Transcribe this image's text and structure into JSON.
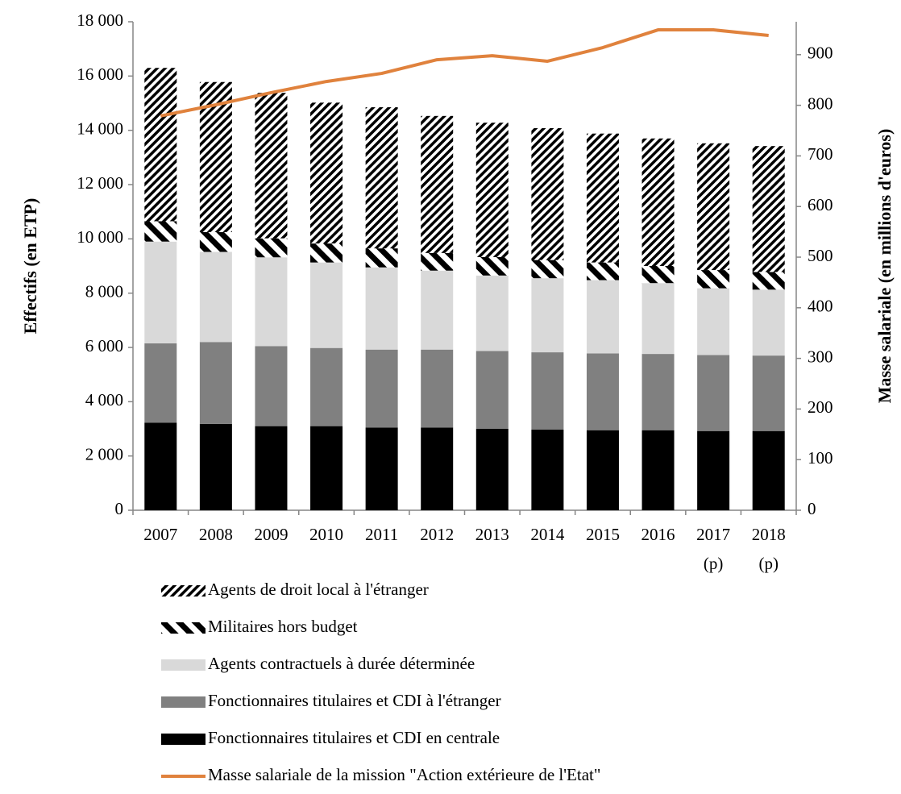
{
  "chart_data": {
    "type": "stacked-bar-line",
    "y_label": "Effectifs (en ETP)",
    "y2_label": "Masse salariale (en millions d'euros)",
    "categories": [
      "2007",
      "2008",
      "2009",
      "2010",
      "2011",
      "2012",
      "2013",
      "2014",
      "2015",
      "2016",
      "2017 (p)",
      "2018 (p)"
    ],
    "ylim": [
      0,
      18000
    ],
    "yticks": [
      {
        "value": 0,
        "label": "0"
      },
      {
        "value": 2000,
        "label": "2 000"
      },
      {
        "value": 4000,
        "label": "4 000"
      },
      {
        "value": 6000,
        "label": "6 000"
      },
      {
        "value": 8000,
        "label": "8 000"
      },
      {
        "value": 10000,
        "label": "10 000"
      },
      {
        "value": 12000,
        "label": "12 000"
      },
      {
        "value": 14000,
        "label": "14 000"
      },
      {
        "value": 16000,
        "label": "16 000"
      },
      {
        "value": 18000,
        "label": "18 000"
      }
    ],
    "y2lim": [
      0,
      965
    ],
    "y2ticks": [
      0,
      100,
      200,
      300,
      400,
      500,
      600,
      700,
      800,
      900
    ],
    "series": [
      {
        "name": "Fonctionnaires titulaires et CDI en centrale",
        "color": "#000000",
        "pattern": "solid",
        "values": [
          3230,
          3180,
          3100,
          3100,
          3050,
          3050,
          3000,
          2970,
          2950,
          2950,
          2920,
          2920
        ]
      },
      {
        "name": "Fonctionnaires titulaires et CDI à l'étranger",
        "color": "#808080",
        "pattern": "solid",
        "values": [
          2920,
          3020,
          2950,
          2880,
          2870,
          2870,
          2870,
          2850,
          2830,
          2810,
          2800,
          2780
        ]
      },
      {
        "name": "Agents contractuels à durée déterminée",
        "color": "#d9d9d9",
        "pattern": "solid",
        "values": [
          3750,
          3320,
          3270,
          3150,
          3030,
          2910,
          2780,
          2730,
          2700,
          2610,
          2460,
          2430
        ]
      },
      {
        "name": "Militaires hors budget",
        "color": "#000000",
        "pattern": "wide-diagonal",
        "values": [
          750,
          730,
          700,
          700,
          700,
          650,
          680,
          670,
          650,
          630,
          670,
          650
        ]
      },
      {
        "name": "Agents de droit local à l'étranger",
        "color": "#000000",
        "pattern": "dense-diagonal",
        "values": [
          5650,
          5530,
          5360,
          5190,
          5200,
          5050,
          4950,
          4860,
          4750,
          4700,
          4670,
          4640
        ]
      },
      {
        "name": "Masse salariale de la mission \"Action extérieure de l'Etat\"",
        "color": "#e0823d",
        "axis": "y2",
        "kind": "line",
        "values": [
          779,
          801,
          825,
          847,
          863,
          890,
          898,
          887,
          914,
          949,
          949,
          938
        ]
      }
    ]
  }
}
